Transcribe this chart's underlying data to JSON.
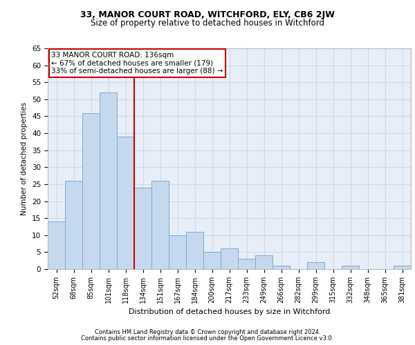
{
  "title1": "33, MANOR COURT ROAD, WITCHFORD, ELY, CB6 2JW",
  "title2": "Size of property relative to detached houses in Witchford",
  "xlabel": "Distribution of detached houses by size in Witchford",
  "ylabel": "Number of detached properties",
  "categories": [
    "52sqm",
    "68sqm",
    "85sqm",
    "101sqm",
    "118sqm",
    "134sqm",
    "151sqm",
    "167sqm",
    "184sqm",
    "200sqm",
    "217sqm",
    "233sqm",
    "249sqm",
    "266sqm",
    "282sqm",
    "299sqm",
    "315sqm",
    "332sqm",
    "348sqm",
    "365sqm",
    "381sqm"
  ],
  "values": [
    14,
    26,
    46,
    52,
    39,
    24,
    26,
    10,
    11,
    5,
    6,
    3,
    4,
    1,
    0,
    2,
    0,
    1,
    0,
    0,
    1
  ],
  "bar_color": "#c5d8ed",
  "bar_edge_color": "#7aaccd",
  "grid_color": "#d0d8e8",
  "background_color": "#e8eef8",
  "vline_x_index": 5,
  "vline_color": "#cc0000",
  "annotation_box_color": "#cc0000",
  "annotation_lines": [
    "33 MANOR COURT ROAD: 136sqm",
    "← 67% of detached houses are smaller (179)",
    "33% of semi-detached houses are larger (88) →"
  ],
  "footer1": "Contains HM Land Registry data © Crown copyright and database right 2024.",
  "footer2": "Contains public sector information licensed under the Open Government Licence v3.0.",
  "ylim": [
    0,
    65
  ],
  "yticks": [
    0,
    5,
    10,
    15,
    20,
    25,
    30,
    35,
    40,
    45,
    50,
    55,
    60,
    65
  ]
}
